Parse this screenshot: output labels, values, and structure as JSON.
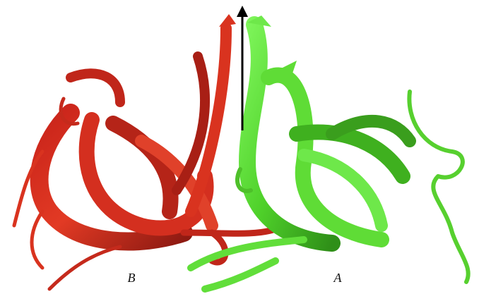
{
  "labels": {
    "left": "B",
    "right": "A"
  }
}
